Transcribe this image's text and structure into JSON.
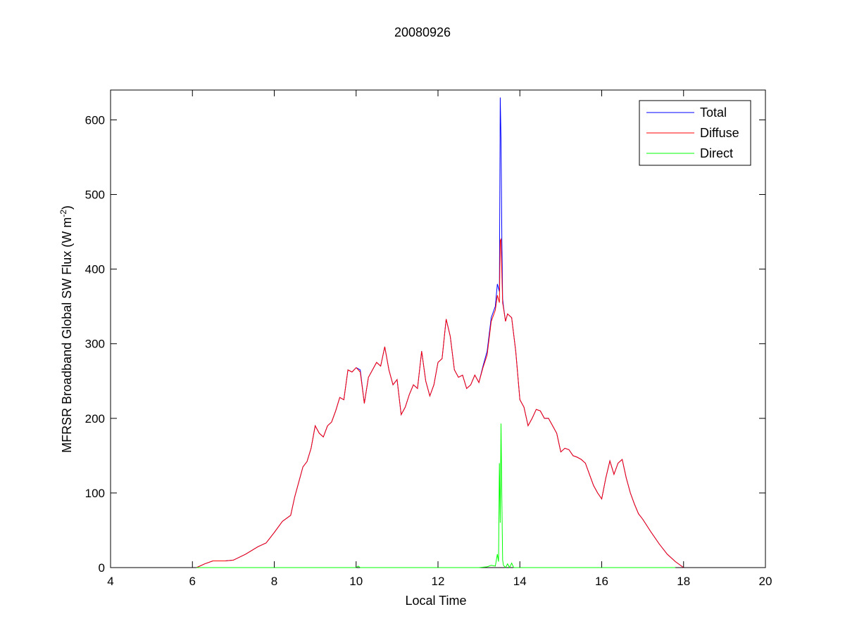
{
  "chart_data": {
    "type": "line",
    "title": "20080926",
    "xlabel": "Local Time",
    "ylabel_main": "MFRSR Broadband Global SW Flux (W m",
    "ylabel_sup": "-2",
    "ylabel_close": ")",
    "xlim": [
      4,
      20
    ],
    "ylim": [
      0,
      640
    ],
    "xticks": [
      4,
      6,
      8,
      10,
      12,
      14,
      16,
      18,
      20
    ],
    "yticks": [
      0,
      100,
      200,
      300,
      400,
      500,
      600
    ],
    "grid": false,
    "legend_position": "top-right",
    "series": [
      {
        "name": "Total",
        "color": "#0000ff",
        "x": [
          6.1,
          6.3,
          6.5,
          6.8,
          7.0,
          7.3,
          7.6,
          7.8,
          8.0,
          8.2,
          8.4,
          8.5,
          8.7,
          8.8,
          8.9,
          9.0,
          9.1,
          9.2,
          9.3,
          9.4,
          9.5,
          9.6,
          9.7,
          9.8,
          9.9,
          10.0,
          10.1,
          10.2,
          10.3,
          10.4,
          10.5,
          10.6,
          10.7,
          10.8,
          10.9,
          11.0,
          11.1,
          11.2,
          11.3,
          11.4,
          11.5,
          11.6,
          11.7,
          11.8,
          11.9,
          12.0,
          12.1,
          12.2,
          12.3,
          12.4,
          12.5,
          12.6,
          12.7,
          12.8,
          12.9,
          13.0,
          13.1,
          13.2,
          13.3,
          13.4,
          13.45,
          13.5,
          13.52,
          13.54,
          13.56,
          13.58,
          13.6,
          13.65,
          13.7,
          13.8,
          13.9,
          14.0,
          14.1,
          14.2,
          14.3,
          14.4,
          14.5,
          14.6,
          14.7,
          14.8,
          14.9,
          15.0,
          15.1,
          15.2,
          15.3,
          15.4,
          15.5,
          15.6,
          15.7,
          15.8,
          15.9,
          16.0,
          16.1,
          16.2,
          16.3,
          16.4,
          16.5,
          16.6,
          16.7,
          16.8,
          16.9,
          17.0,
          17.2,
          17.4,
          17.6,
          17.8,
          18.0
        ],
        "values": [
          0,
          5,
          9,
          9,
          10,
          18,
          28,
          33,
          47,
          62,
          70,
          95,
          135,
          142,
          160,
          190,
          180,
          175,
          190,
          195,
          210,
          228,
          225,
          265,
          262,
          268,
          265,
          220,
          255,
          265,
          275,
          270,
          296,
          265,
          245,
          252,
          205,
          215,
          232,
          245,
          240,
          290,
          250,
          230,
          245,
          275,
          280,
          333,
          310,
          265,
          255,
          258,
          240,
          245,
          258,
          248,
          270,
          290,
          335,
          350,
          380,
          370,
          630,
          575,
          440,
          360,
          350,
          330,
          340,
          335,
          290,
          225,
          215,
          190,
          200,
          212,
          210,
          200,
          200,
          190,
          180,
          155,
          160,
          158,
          150,
          148,
          145,
          140,
          125,
          110,
          100,
          92,
          120,
          143,
          125,
          140,
          145,
          120,
          100,
          85,
          72,
          65,
          48,
          32,
          18,
          8,
          0
        ]
      },
      {
        "name": "Diffuse",
        "color": "#ff0000",
        "x": [
          6.1,
          6.3,
          6.5,
          6.8,
          7.0,
          7.3,
          7.6,
          7.8,
          8.0,
          8.2,
          8.4,
          8.5,
          8.7,
          8.8,
          8.9,
          9.0,
          9.1,
          9.2,
          9.3,
          9.4,
          9.5,
          9.6,
          9.7,
          9.8,
          9.9,
          10.0,
          10.1,
          10.2,
          10.3,
          10.4,
          10.5,
          10.6,
          10.7,
          10.8,
          10.9,
          11.0,
          11.1,
          11.2,
          11.3,
          11.4,
          11.5,
          11.6,
          11.7,
          11.8,
          11.9,
          12.0,
          12.1,
          12.2,
          12.3,
          12.4,
          12.5,
          12.6,
          12.7,
          12.8,
          12.9,
          13.0,
          13.1,
          13.2,
          13.3,
          13.4,
          13.45,
          13.5,
          13.52,
          13.54,
          13.56,
          13.58,
          13.6,
          13.65,
          13.7,
          13.8,
          13.9,
          14.0,
          14.1,
          14.2,
          14.3,
          14.4,
          14.5,
          14.6,
          14.7,
          14.8,
          14.9,
          15.0,
          15.1,
          15.2,
          15.3,
          15.4,
          15.5,
          15.6,
          15.7,
          15.8,
          15.9,
          16.0,
          16.1,
          16.2,
          16.3,
          16.4,
          16.5,
          16.6,
          16.7,
          16.8,
          16.9,
          17.0,
          17.2,
          17.4,
          17.6,
          17.8,
          18.0
        ],
        "values": [
          0,
          5,
          9,
          9,
          10,
          18,
          28,
          33,
          47,
          62,
          70,
          95,
          135,
          142,
          160,
          190,
          180,
          175,
          190,
          195,
          210,
          228,
          225,
          265,
          262,
          268,
          262,
          220,
          255,
          265,
          275,
          270,
          296,
          265,
          245,
          252,
          205,
          215,
          232,
          245,
          240,
          290,
          250,
          230,
          245,
          275,
          280,
          333,
          310,
          265,
          255,
          258,
          240,
          245,
          258,
          248,
          268,
          285,
          330,
          345,
          365,
          355,
          438,
          440,
          395,
          355,
          348,
          330,
          340,
          335,
          290,
          225,
          215,
          190,
          200,
          212,
          210,
          200,
          200,
          190,
          180,
          155,
          160,
          158,
          150,
          148,
          145,
          140,
          125,
          110,
          100,
          92,
          120,
          143,
          125,
          140,
          145,
          120,
          100,
          85,
          72,
          65,
          48,
          32,
          18,
          8,
          0
        ]
      },
      {
        "name": "Direct",
        "color": "#00ff00",
        "x": [
          6.1,
          7.0,
          8.0,
          9.0,
          10.0,
          10.05,
          10.1,
          11.0,
          12.0,
          13.0,
          13.2,
          13.3,
          13.4,
          13.45,
          13.48,
          13.5,
          13.52,
          13.54,
          13.56,
          13.58,
          13.6,
          13.65,
          13.7,
          13.75,
          13.8,
          13.85,
          14.0,
          15.0,
          16.0,
          17.0,
          17.8
        ],
        "values": [
          0,
          0,
          0,
          0,
          0,
          2,
          0,
          0,
          0,
          0,
          1,
          3,
          2,
          18,
          8,
          140,
          60,
          193,
          90,
          10,
          3,
          0,
          5,
          0,
          6,
          0,
          0,
          0,
          0,
          0,
          0
        ]
      }
    ]
  }
}
